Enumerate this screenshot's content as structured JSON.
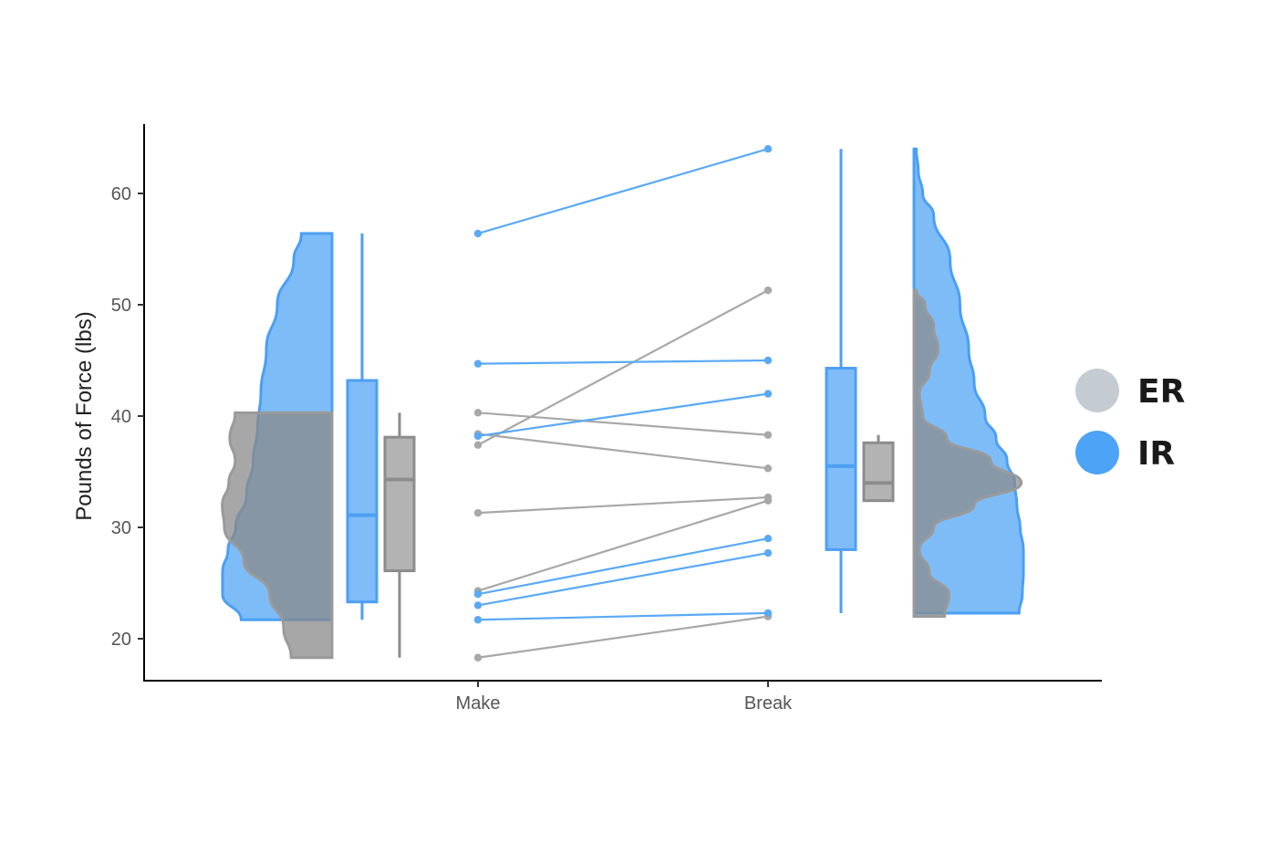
{
  "chart_data": {
    "type": "raincloud",
    "title": "",
    "xlabel": "",
    "ylabel": "Pounds of Force (lbs)",
    "categories": [
      "Make",
      "Break"
    ],
    "yticks": [
      20,
      30,
      40,
      50,
      60
    ],
    "ylim": [
      16,
      66
    ],
    "grid": false,
    "legend": {
      "position": "right",
      "entries": [
        {
          "label": "ER",
          "color": "#c4cbd3"
        },
        {
          "label": "IR",
          "color": "#4da3f5"
        }
      ]
    },
    "colors": {
      "ER": "#9e9e9e",
      "IR": "#5aa9f6",
      "axis": "#000000"
    },
    "series": [
      {
        "name": "ER",
        "pairs": [
          {
            "make": 18.3,
            "break": 22.0
          },
          {
            "make": 24.3,
            "break": 32.4
          },
          {
            "make": 31.3,
            "break": 32.7
          },
          {
            "make": 37.4,
            "break": 51.3
          },
          {
            "make": 38.4,
            "break": 35.3
          },
          {
            "make": 40.3,
            "break": 38.3
          }
        ],
        "box": {
          "make": {
            "min": 18.3,
            "q1": 26.1,
            "median": 34.3,
            "q3": 38.1,
            "max": 40.3
          },
          "break": {
            "min": 32.4,
            "q1": 32.4,
            "median": 34.0,
            "q3": 37.6,
            "max": 38.3
          }
        },
        "density": {
          "make": {
            "y": [
              18.3,
              21,
              24,
              27,
              30,
              32,
              34,
              36,
              38,
              40.3
            ],
            "width": [
              0.38,
              0.45,
              0.58,
              0.82,
              1.0,
              1.02,
              0.96,
              0.9,
              0.95,
              0.9
            ]
          },
          "break": {
            "y": [
              22.0,
              24,
              26,
              28,
              30,
              32,
              34,
              36,
              38,
              40,
              42,
              44,
              46,
              48,
              50,
              51.3
            ],
            "width": [
              0.28,
              0.32,
              0.14,
              0.05,
              0.18,
              0.55,
              0.98,
              0.7,
              0.3,
              0.08,
              0.05,
              0.14,
              0.22,
              0.18,
              0.1,
              0.02
            ]
          }
        }
      },
      {
        "name": "IR",
        "pairs": [
          {
            "make": 21.7,
            "break": 22.3
          },
          {
            "make": 23.0,
            "break": 27.7
          },
          {
            "make": 24.0,
            "break": 29.0
          },
          {
            "make": 38.2,
            "break": 42.0
          },
          {
            "make": 44.7,
            "break": 45.0
          },
          {
            "make": 56.4,
            "break": 64.0
          }
        ],
        "box": {
          "make": {
            "min": 21.7,
            "q1": 23.3,
            "median": 31.1,
            "q3": 43.2,
            "max": 56.4
          },
          "break": {
            "min": 22.3,
            "q1": 28.0,
            "median": 35.5,
            "q3": 44.3,
            "max": 64.0
          }
        },
        "density": {
          "make": {
            "y": [
              21.7,
              24,
              26,
              28,
              30,
              33,
              36,
              39,
              42,
              46,
              50,
              54,
              56.4
            ],
            "width": [
              0.83,
              1.0,
              1.0,
              0.95,
              0.88,
              0.78,
              0.72,
              0.68,
              0.65,
              0.6,
              0.5,
              0.35,
              0.28
            ]
          },
          "break": {
            "y": [
              22.3,
              24,
              26,
              28,
              30,
              32,
              34,
              36,
              38,
              40,
              43,
              46,
              50,
              54,
              58,
              60,
              62,
              64
            ],
            "width": [
              0.96,
              0.99,
              1.0,
              1.0,
              0.97,
              0.94,
              0.92,
              0.85,
              0.75,
              0.65,
              0.55,
              0.5,
              0.42,
              0.33,
              0.18,
              0.08,
              0.04,
              0.02
            ]
          }
        }
      }
    ]
  }
}
